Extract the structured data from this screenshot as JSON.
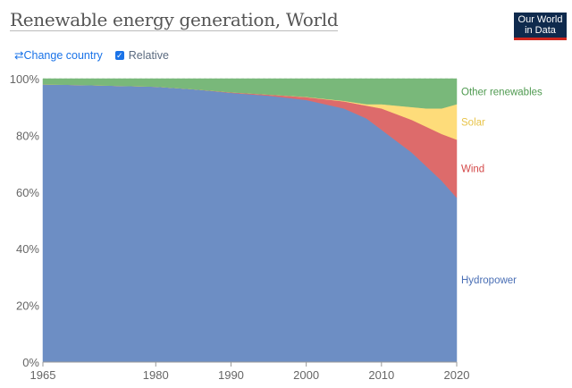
{
  "header": {
    "title": "Renewable energy generation, World",
    "logo": "Our World in Data"
  },
  "controls": {
    "change_country": "Change country",
    "change_icon": "swap-arrows-icon",
    "relative_label": "Relative",
    "relative_checked": true
  },
  "chart_data": {
    "type": "area",
    "stacked": true,
    "relative": true,
    "title": "Renewable energy generation, World",
    "x": [
      1965,
      1970,
      1975,
      1980,
      1985,
      1990,
      1995,
      2000,
      2005,
      2008,
      2010,
      2012,
      2014,
      2016,
      2018,
      2020
    ],
    "xlim": [
      1965,
      2020
    ],
    "ylim": [
      0,
      100
    ],
    "x_ticks": [
      "1965",
      "1980",
      "1990",
      "2000",
      "2010",
      "2020"
    ],
    "y_ticks": [
      "0%",
      "20%",
      "40%",
      "60%",
      "80%",
      "100%"
    ],
    "grid": "horizontal dashed",
    "legend": "right (inline labels)",
    "series": [
      {
        "name": "Hydropower",
        "color": "#6d8ec4",
        "values": [
          98,
          97.8,
          97.5,
          97.2,
          96.3,
          95,
          94,
          92.5,
          89.5,
          86,
          82,
          78,
          74,
          69,
          64,
          58
        ]
      },
      {
        "name": "Wind",
        "color": "#dd6b6b",
        "values": [
          0,
          0,
          0,
          0,
          0,
          0.2,
          0.4,
          1,
          2.5,
          4.5,
          7.5,
          9.5,
          11.5,
          14,
          16.5,
          20.5
        ]
      },
      {
        "name": "Solar",
        "color": "#fedc7a",
        "values": [
          0,
          0,
          0,
          0,
          0,
          0,
          0,
          0.1,
          0.2,
          0.5,
          1.5,
          3,
          4.5,
          6.5,
          9,
          12.5
        ]
      },
      {
        "name": "Other renewables",
        "color": "#79b87a",
        "values": [
          2,
          2.2,
          2.5,
          2.8,
          3.7,
          4.8,
          5.6,
          6.4,
          7.8,
          9,
          9,
          9.5,
          10,
          10.5,
          10.5,
          9
        ]
      }
    ]
  }
}
